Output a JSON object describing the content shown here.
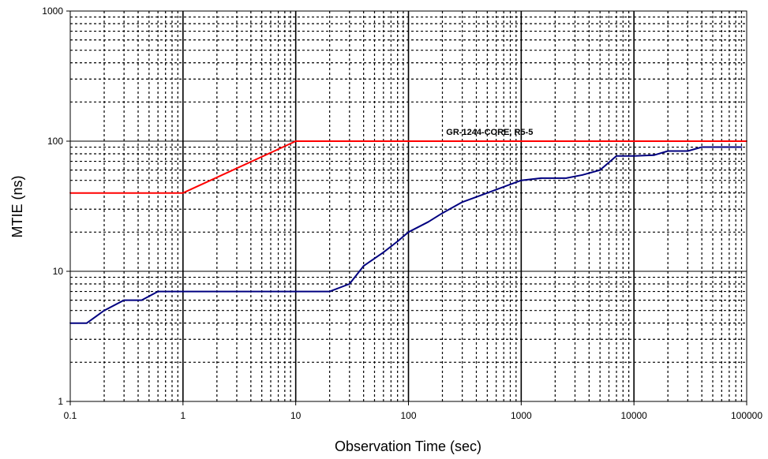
{
  "chart_data": {
    "type": "line",
    "title": "",
    "xlabel": "Observation Time (sec)",
    "ylabel": "MTIE (ns)",
    "x_scale": "log",
    "y_scale": "log",
    "xlim": [
      0.1,
      100000
    ],
    "ylim": [
      1,
      1000
    ],
    "x_ticks": [
      "0.1",
      "1",
      "10",
      "100",
      "1000",
      "10000",
      "100000"
    ],
    "y_ticks": [
      "1",
      "10",
      "100",
      "1000"
    ],
    "grid": true,
    "legend": "none",
    "colors": {
      "mask": "#ff0000",
      "measured": "#000080",
      "grid_major": "#000000",
      "grid_minor": "#000000"
    },
    "annotations": [
      {
        "text": "GR-1244-CORE, R5-5",
        "x": 1000,
        "y": 100
      }
    ],
    "series": [
      {
        "color": "#ff0000",
        "x": [
          0.1,
          1,
          10,
          100000
        ],
        "y": [
          40,
          40,
          100,
          100
        ]
      },
      {
        "color": "#000080",
        "x": [
          0.1,
          0.14,
          0.2,
          0.3,
          0.43,
          0.6,
          1,
          2,
          5,
          10,
          20,
          30,
          40,
          60,
          80,
          100,
          150,
          200,
          300,
          500,
          1000,
          1500,
          2500,
          3500,
          5000,
          7000,
          10000,
          15000,
          20000,
          30000,
          40000,
          60000,
          90000
        ],
        "y": [
          4,
          4,
          5,
          6,
          6,
          7,
          7,
          7,
          7,
          7,
          7,
          8,
          11,
          14,
          17,
          20,
          24,
          28,
          34,
          40,
          50,
          52,
          52,
          55,
          60,
          77,
          77,
          78,
          84,
          84,
          90,
          90,
          90
        ]
      }
    ]
  }
}
